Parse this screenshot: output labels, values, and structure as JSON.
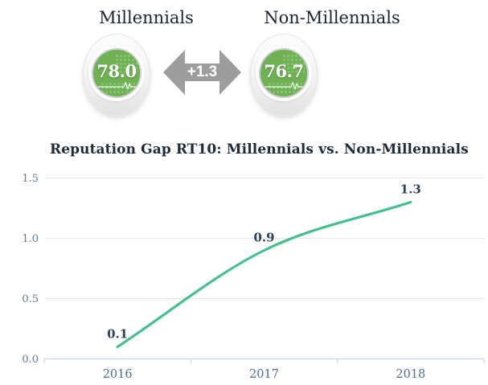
{
  "header": {
    "left": {
      "label": "Millennials",
      "value": "78.0"
    },
    "right": {
      "label": "Non-Millennials",
      "value": "76.7"
    },
    "gap": "+1.3"
  },
  "chart": {
    "title": "Reputation Gap RT10: Millennials vs. Non-Millennials"
  },
  "chart_data": {
    "type": "line",
    "title": "Reputation Gap RT10: Millennials vs. Non-Millennials",
    "categories": [
      "2016",
      "2017",
      "2018"
    ],
    "values": [
      0.1,
      0.9,
      1.3
    ],
    "data_labels": [
      "0.1",
      "0.9",
      "1.3"
    ],
    "xlabel": "",
    "ylabel": "",
    "ylim": [
      0,
      1.5
    ],
    "yticks": [
      0.0,
      0.5,
      1.0,
      1.5
    ],
    "ytick_labels": [
      "0.0",
      "0.5",
      "1.0",
      "1.5"
    ],
    "grid": true,
    "legend": false,
    "curve": "monotone"
  },
  "colors": {
    "gauge_green": "#6fb254",
    "arrow_gray": "#9d9d9d",
    "line_green": "#45c08e",
    "title_ink": "#1d2c3c",
    "header_ink": "#1c2430",
    "data_label": "#2c4257",
    "y_tick": "#5b7da0",
    "x_tick": "#4d7095",
    "grid": "#e1e8f0",
    "axis": "#d3dde8"
  }
}
